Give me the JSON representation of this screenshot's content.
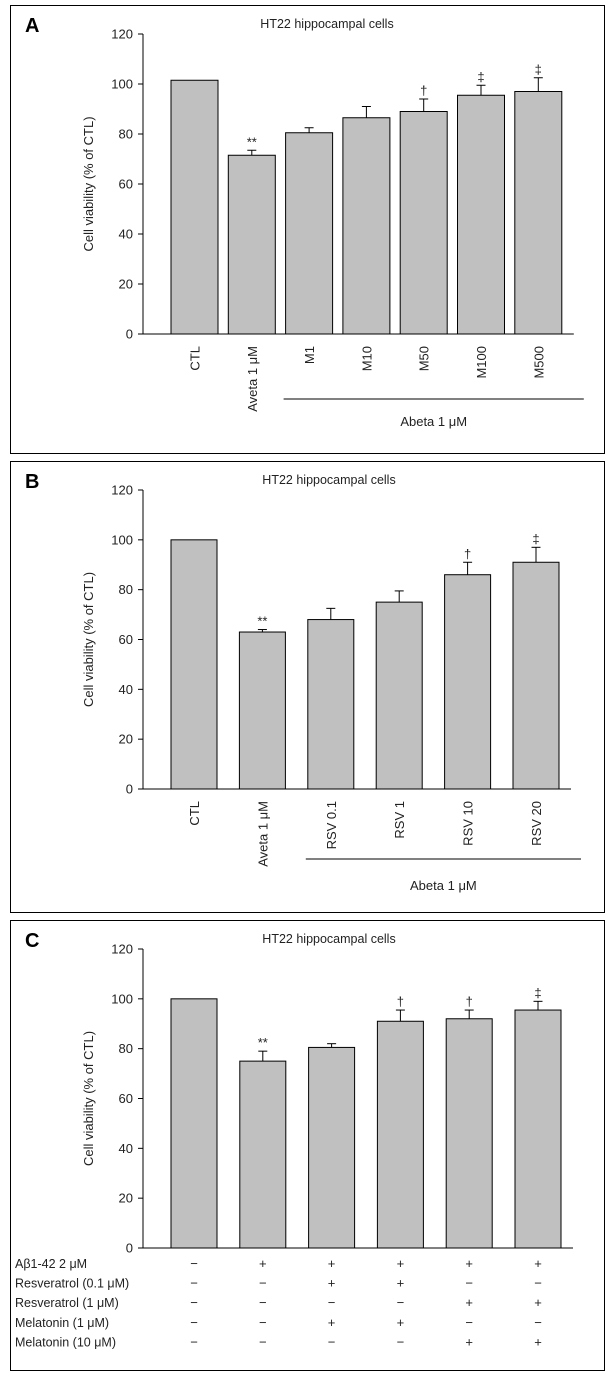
{
  "chart_data": [
    {
      "type": "bar",
      "panel_label": "A",
      "title": "HT22 hippocampal cells",
      "ylabel": "Cell viability (% of CTL)",
      "ylim": [
        0,
        120
      ],
      "yticks": [
        0,
        20,
        40,
        60,
        80,
        100,
        120
      ],
      "categories": [
        "CTL",
        "Aveta 1 μM",
        "M1",
        "M10",
        "M50",
        "M100",
        "M500"
      ],
      "values": [
        101.5,
        71.5,
        80.5,
        86.5,
        89,
        95.5,
        97
      ],
      "errors": [
        0,
        2,
        2,
        4.5,
        5,
        4,
        5.5
      ],
      "markers": [
        "",
        "**",
        "",
        "",
        "†",
        "‡",
        "‡"
      ],
      "group_label": "Abeta 1 μM",
      "group_span": [
        2,
        6
      ]
    },
    {
      "type": "bar",
      "panel_label": "B",
      "title": "HT22 hippocampal cells",
      "ylabel": "Cell viability (% of CTL)",
      "ylim": [
        0,
        120
      ],
      "yticks": [
        0,
        20,
        40,
        60,
        80,
        100,
        120
      ],
      "categories": [
        "CTL",
        "Aveta 1 μM",
        "RSV 0.1",
        "RSV 1",
        "RSV 10",
        "RSV 20"
      ],
      "values": [
        100,
        63,
        68,
        75,
        86,
        91
      ],
      "errors": [
        0,
        1,
        4.5,
        4.5,
        5,
        6
      ],
      "markers": [
        "",
        "**",
        "",
        "",
        "†",
        "‡"
      ],
      "group_label": "Abeta 1 μM",
      "group_span": [
        2,
        5
      ]
    },
    {
      "type": "bar",
      "panel_label": "C",
      "title": "HT22 hippocampal cells",
      "ylabel": "Cell viability (% of CTL)",
      "ylim": [
        0,
        120
      ],
      "yticks": [
        0,
        20,
        40,
        60,
        80,
        100,
        120
      ],
      "categories": [
        "",
        "",
        "",
        "",
        "",
        ""
      ],
      "values": [
        100,
        75,
        80.5,
        91,
        92,
        95.5
      ],
      "errors": [
        0,
        4,
        1.5,
        4.5,
        3.5,
        3.5
      ],
      "markers": [
        "",
        "**",
        "",
        "†",
        "†",
        "‡"
      ],
      "conditions": [
        {
          "label": "Aβ1-42 2 μM",
          "signs": [
            "−",
            "+",
            "+",
            "+",
            "+",
            "+"
          ]
        },
        {
          "label": "Resveratrol (0.1 μM)",
          "signs": [
            "−",
            "−",
            "+",
            "+",
            "−",
            "−"
          ]
        },
        {
          "label": "Resveratrol (1 μM)",
          "signs": [
            "−",
            "−",
            "−",
            "−",
            "+",
            "+"
          ]
        },
        {
          "label": "Melatonin (1 μM)",
          "signs": [
            "−",
            "−",
            "+",
            "+",
            "−",
            "−"
          ]
        },
        {
          "label": "Melatonin (10 μM)",
          "signs": [
            "−",
            "−",
            "−",
            "−",
            "+",
            "+"
          ]
        }
      ]
    }
  ]
}
